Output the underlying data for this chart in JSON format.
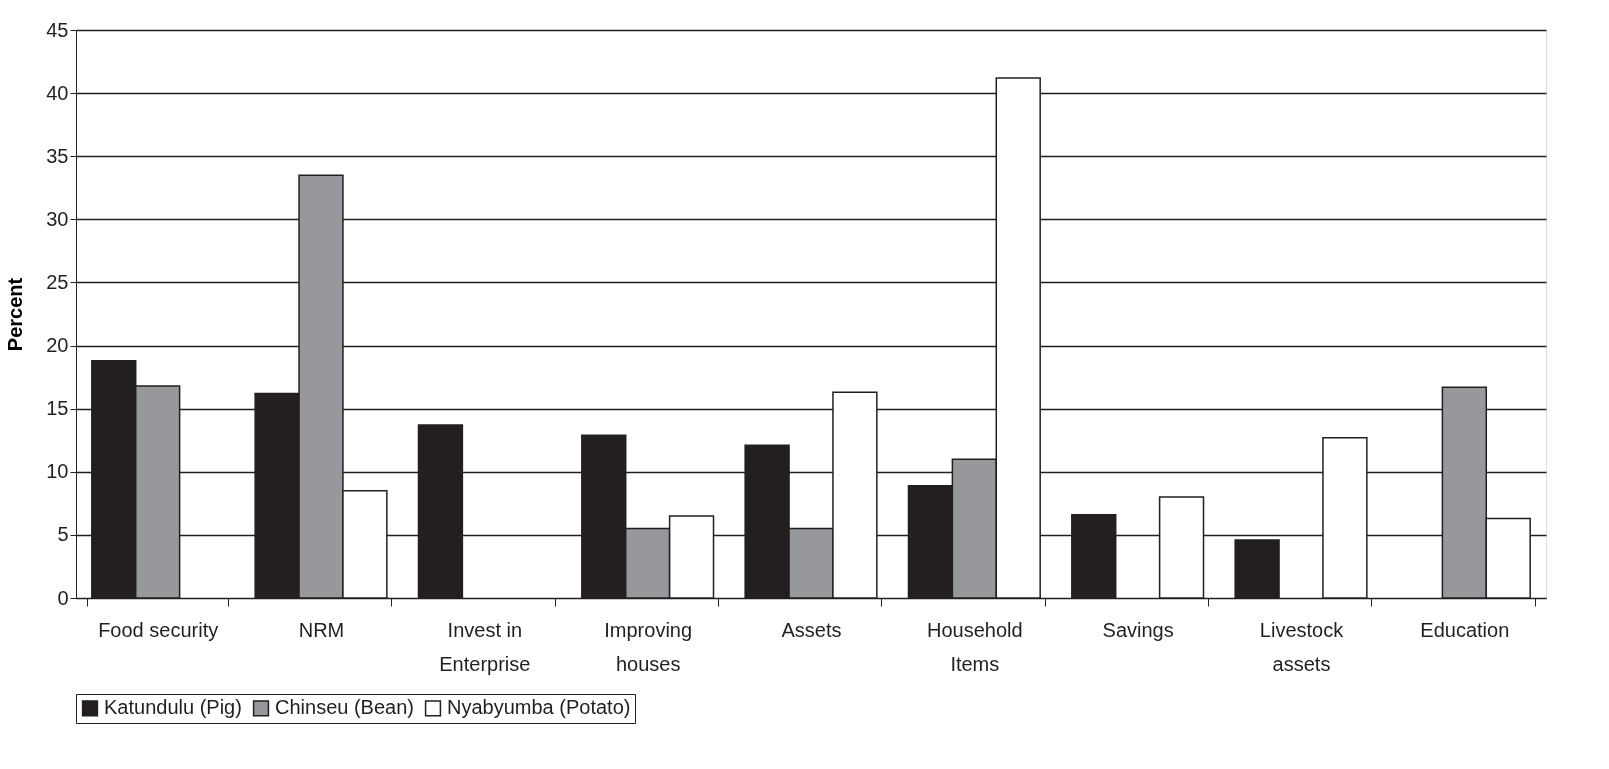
{
  "chart_data": {
    "type": "bar",
    "ylabel": "Percent",
    "categories": [
      "Food security",
      "NRM",
      "Invest in Enterprise",
      "Improving houses",
      "Assets",
      "Household Items",
      "Savings",
      "Livestock assets",
      "Education"
    ],
    "series": [
      {
        "name": "Katundulu (Pig)",
        "color": "#231f20",
        "values": [
          18.8,
          16.2,
          13.7,
          12.9,
          12.1,
          8.9,
          6.6,
          4.6,
          null
        ]
      },
      {
        "name": "Chinseu (Bean)",
        "color": "#97989c",
        "values": [
          16.8,
          33.5,
          null,
          5.5,
          5.5,
          11.0,
          null,
          null,
          16.7
        ]
      },
      {
        "name": "Nyabyumba (Potato)",
        "color": "#ffffff",
        "values": [
          null,
          8.5,
          null,
          6.5,
          16.3,
          41.2,
          8.0,
          12.7,
          6.3
        ]
      }
    ],
    "ylim": [
      0,
      45
    ],
    "yticks": [
      0,
      5,
      10,
      15,
      20,
      25,
      30,
      35,
      40,
      45
    ],
    "grid": "y",
    "legend": "bottom"
  }
}
